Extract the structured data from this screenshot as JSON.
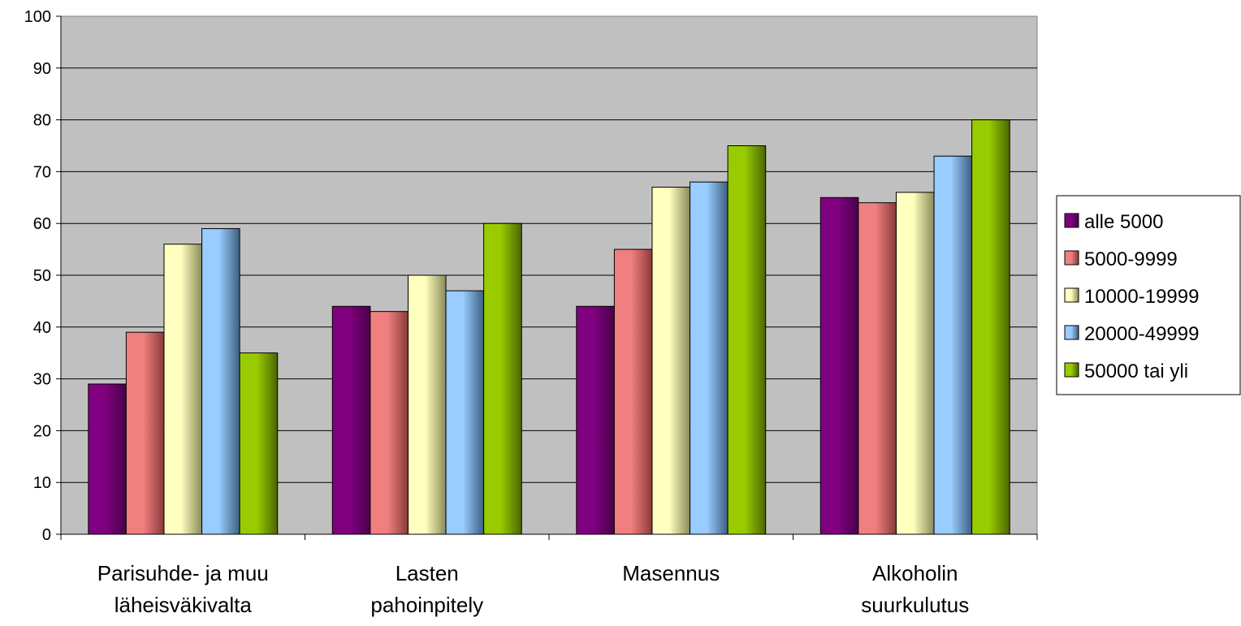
{
  "chart_data": {
    "type": "bar",
    "categories": [
      [
        "Parisuhde- ja muu",
        "läheisväkivalta"
      ],
      [
        "Lasten",
        "pahoinpitely"
      ],
      [
        "Masennus"
      ],
      [
        "Alkoholin",
        "suurkulutus"
      ]
    ],
    "series": [
      {
        "name": "alle 5000",
        "values": [
          29,
          44,
          44,
          65
        ],
        "color": "#800080",
        "color_dark": "#4a004a"
      },
      {
        "name": "5000-9999",
        "values": [
          39,
          43,
          55,
          64
        ],
        "color": "#f08080",
        "color_dark": "#8a3a3a"
      },
      {
        "name": "10000-19999",
        "values": [
          56,
          50,
          67,
          66
        ],
        "color": "#ffffc0",
        "color_dark": "#8a8a58"
      },
      {
        "name": "20000-49999",
        "values": [
          59,
          47,
          68,
          73
        ],
        "color": "#99ccff",
        "color_dark": "#3e5f80"
      },
      {
        "name": "50000 tai yli",
        "values": [
          35,
          60,
          75,
          80
        ],
        "color": "#99cc00",
        "color_dark": "#4a6600"
      }
    ],
    "ylim": [
      0,
      100
    ],
    "yticks": [
      "0",
      "10",
      "20",
      "30",
      "40",
      "50",
      "60",
      "70",
      "80",
      "90",
      "100"
    ],
    "plot_background": "#c0c0c0",
    "grid": true,
    "legend_position": "right"
  }
}
